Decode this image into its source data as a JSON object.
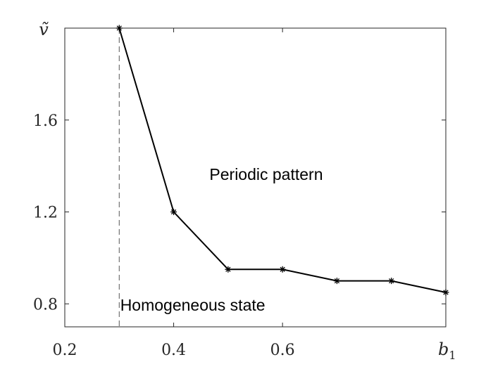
{
  "chart_data": {
    "type": "line",
    "x": [
      0.3,
      0.4,
      0.5,
      0.6,
      0.7,
      0.8,
      0.9
    ],
    "series": [
      {
        "values": [
          2.0,
          1.2,
          0.95,
          0.95,
          0.9,
          0.9,
          0.85
        ],
        "marker": "asterisk",
        "color": "#000000"
      }
    ],
    "xlim": [
      0.2,
      0.9
    ],
    "ylim": [
      0.7,
      2.0
    ],
    "x_ticks": [
      0.2,
      0.4,
      0.6
    ],
    "y_ticks": [
      0.8,
      1.2,
      1.6
    ],
    "x_tick_labels": [
      "0.2",
      "0.4",
      "0.6"
    ],
    "y_tick_labels": [
      "0.8",
      "1.2",
      "1.6"
    ],
    "xlabel": "b1",
    "xlabel_main": "b",
    "xlabel_sub": "1",
    "ylabel": "ṽ",
    "vertical_reference_x": 0.3,
    "annotations": [
      {
        "text": "Periodic pattern",
        "x": 0.57,
        "y": 1.34
      },
      {
        "text": "Homogeneous state",
        "x": 0.435,
        "y": 0.77
      }
    ],
    "grid": false,
    "legend": "none"
  }
}
